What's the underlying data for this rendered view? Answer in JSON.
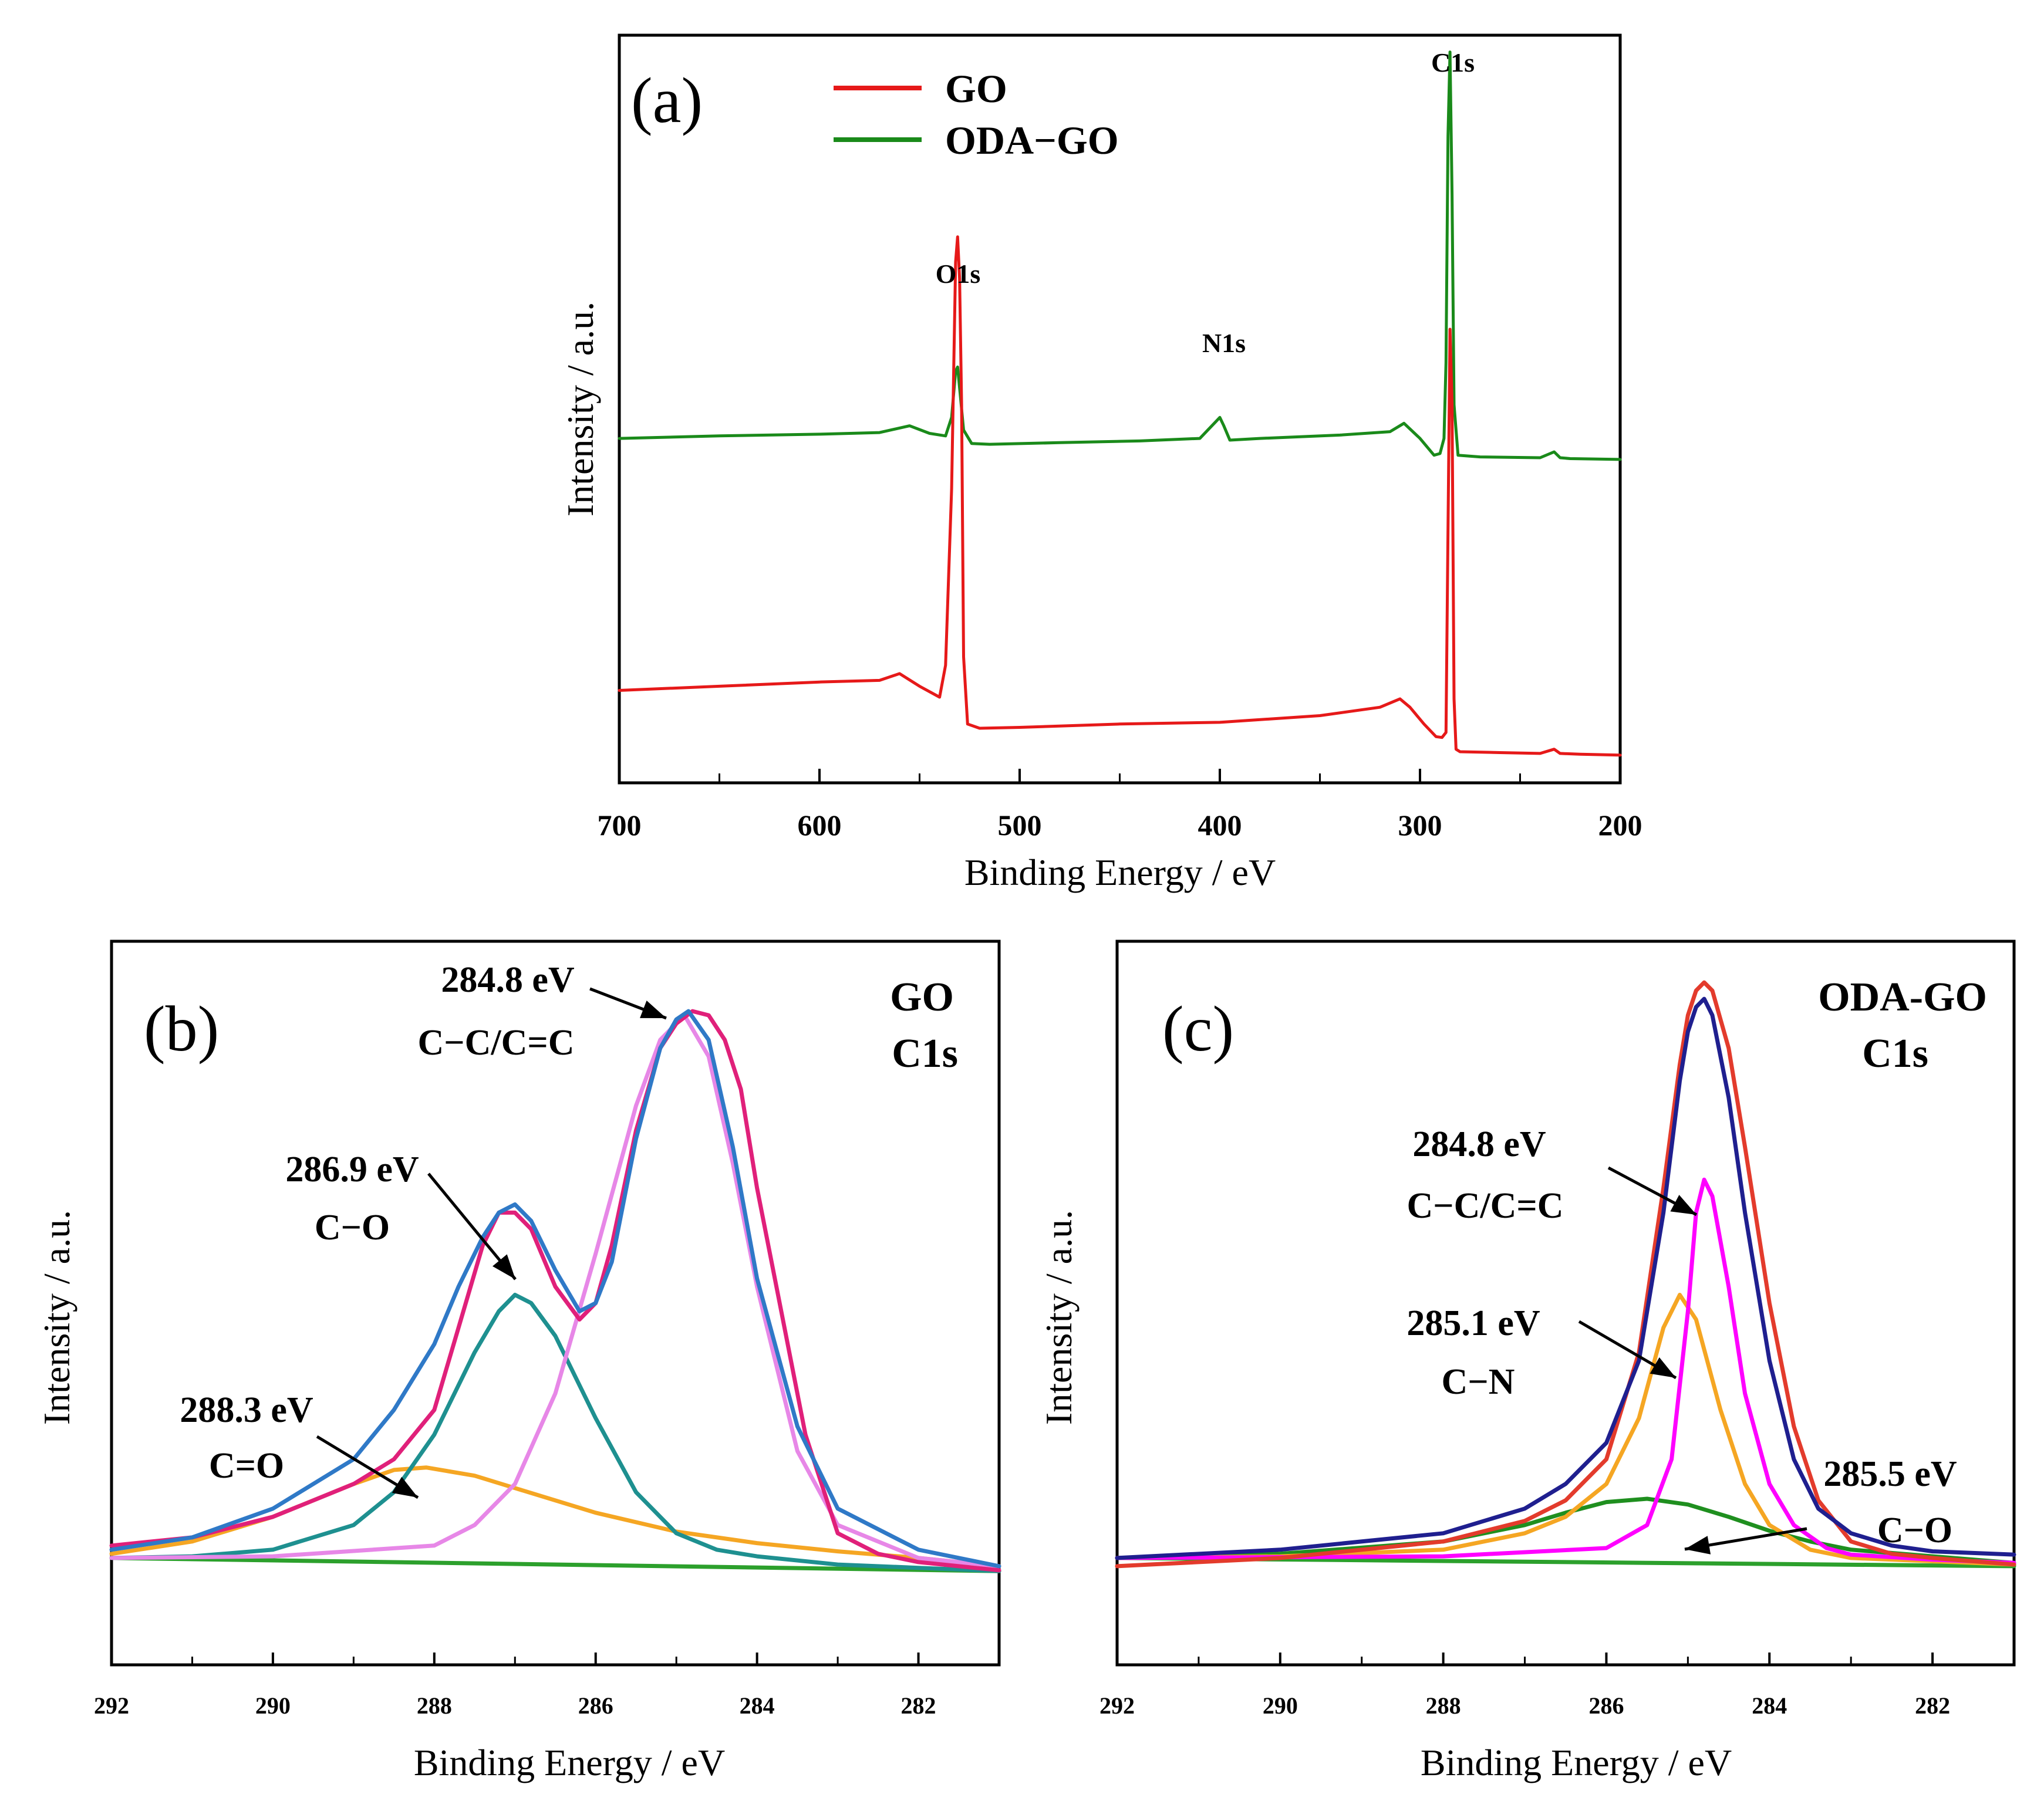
{
  "chart_data": [
    {
      "id": "a",
      "type": "line",
      "panel_label": "(a)",
      "xlabel": "Binding Energy / eV",
      "ylabel": "Intensity / a.u.",
      "xlim": [
        700,
        200
      ],
      "xticks": [
        700,
        600,
        500,
        400,
        300,
        200
      ],
      "legend": {
        "position": "top-center",
        "entries": [
          "GO",
          "ODA−GO"
        ]
      },
      "peak_labels": [
        {
          "text": "O1s",
          "x": 531
        },
        {
          "text": "N1s",
          "x": 400
        },
        {
          "text": "C1s",
          "x": 285
        }
      ],
      "series": [
        {
          "name": "ODA−GO",
          "color": "#1a8a1a",
          "x": [
            700,
            650,
            600,
            570,
            555,
            545,
            537,
            534,
            532,
            531,
            530,
            528,
            524,
            515,
            480,
            440,
            410,
            402,
            400,
            398,
            395,
            380,
            340,
            315,
            308,
            300,
            293,
            290,
            288,
            287,
            286,
            285,
            284,
            283,
            281,
            270,
            240,
            233,
            230,
            225,
            200
          ],
          "y": [
            1.0,
            1.3,
            1.5,
            1.7,
            2.5,
            1.6,
            1.3,
            3.5,
            9.0,
            9.5,
            7.0,
            2.0,
            0.4,
            0.3,
            0.5,
            0.7,
            1.0,
            3.0,
            3.5,
            2.5,
            0.8,
            1.0,
            1.4,
            1.8,
            2.8,
            1.0,
            -1.0,
            -0.8,
            1.0,
            10.0,
            37.0,
            47.0,
            30.0,
            5.0,
            -1.0,
            -1.2,
            -1.3,
            -0.6,
            -1.3,
            -1.4,
            -1.5
          ]
        },
        {
          "name": "GO",
          "color": "#e61919",
          "x": [
            700,
            650,
            600,
            570,
            560,
            550,
            540,
            537,
            534,
            532,
            531,
            530,
            529,
            528,
            526,
            520,
            500,
            450,
            400,
            350,
            320,
            310,
            305,
            298,
            292,
            289,
            287,
            286,
            285,
            284,
            283,
            282,
            280,
            260,
            240,
            233,
            230,
            220,
            200
          ],
          "y": [
            -29.0,
            -28.5,
            -28.0,
            -27.8,
            -27.0,
            -28.5,
            -29.8,
            -26.0,
            -5.0,
            22.0,
            25.0,
            20.0,
            5.0,
            -25.0,
            -33.0,
            -33.5,
            -33.4,
            -33.0,
            -32.8,
            -32.0,
            -31.0,
            -30.0,
            -31.0,
            -33.0,
            -34.5,
            -34.6,
            -34.0,
            -10.0,
            14.0,
            5.0,
            -30.0,
            -36.0,
            -36.3,
            -36.4,
            -36.5,
            -36.0,
            -36.5,
            -36.6,
            -36.7
          ]
        }
      ]
    },
    {
      "id": "b",
      "type": "line",
      "panel_label": "(b)",
      "xlabel": "Binding Energy / eV",
      "ylabel": "Intensity / a.u.",
      "xlim": [
        292,
        281
      ],
      "xticks": [
        292,
        290,
        288,
        286,
        284,
        282
      ],
      "sample": "GO",
      "region": "C1s",
      "annotations": [
        {
          "energy": "284.8 eV",
          "bond": "C−C/C=C"
        },
        {
          "energy": "286.9 eV",
          "bond": "C−O"
        },
        {
          "energy": "288.3 eV",
          "bond": "C=O"
        }
      ],
      "series": [
        {
          "name": "background",
          "color": "#2ca02c",
          "x": [
            292,
            281
          ],
          "y": [
            0.0,
            -0.016
          ]
        },
        {
          "name": "C=O fit",
          "color": "#f5a623",
          "x": [
            292,
            291,
            290,
            289,
            288.5,
            288.1,
            287.5,
            287,
            286,
            285,
            284,
            283,
            282,
            281
          ],
          "y": [
            0.005,
            0.02,
            0.05,
            0.09,
            0.107,
            0.11,
            0.1,
            0.085,
            0.055,
            0.032,
            0.018,
            0.008,
            0.0,
            -0.01
          ]
        },
        {
          "name": "C−O fit",
          "color": "#1e9090",
          "x": [
            292,
            291,
            290,
            289,
            288.5,
            288,
            287.5,
            287.2,
            287,
            286.8,
            286.5,
            286,
            285.5,
            285,
            284.5,
            284,
            283,
            282,
            281
          ],
          "y": [
            0.0,
            0.002,
            0.01,
            0.04,
            0.08,
            0.15,
            0.25,
            0.3,
            0.32,
            0.31,
            0.27,
            0.17,
            0.08,
            0.03,
            0.01,
            0.002,
            -0.008,
            -0.012,
            -0.016
          ]
        },
        {
          "name": "C−C/C=C fit",
          "color": "#e787e7",
          "x": [
            292,
            290,
            288,
            287.5,
            287,
            286.5,
            286,
            285.5,
            285.2,
            284.9,
            284.6,
            284.3,
            284,
            283.5,
            283,
            282,
            281
          ],
          "y": [
            0.0,
            0.002,
            0.015,
            0.04,
            0.09,
            0.2,
            0.37,
            0.55,
            0.63,
            0.66,
            0.61,
            0.48,
            0.33,
            0.13,
            0.04,
            0.0,
            -0.01
          ]
        },
        {
          "name": "raw data",
          "color": "#e0207a",
          "x": [
            292,
            291,
            290,
            289,
            288.5,
            288,
            287.7,
            287.4,
            287.2,
            287,
            286.8,
            286.5,
            286.2,
            286,
            285.8,
            285.5,
            285.2,
            285,
            284.8,
            284.6,
            284.4,
            284.2,
            284,
            283.7,
            283.4,
            283,
            282.5,
            282,
            281
          ],
          "y": [
            0.015,
            0.025,
            0.05,
            0.09,
            0.12,
            0.18,
            0.28,
            0.38,
            0.42,
            0.42,
            0.4,
            0.33,
            0.29,
            0.31,
            0.38,
            0.52,
            0.62,
            0.65,
            0.665,
            0.66,
            0.63,
            0.57,
            0.45,
            0.3,
            0.15,
            0.03,
            0.005,
            -0.005,
            -0.015
          ]
        },
        {
          "name": "sum fit",
          "color": "#2f79c7",
          "x": [
            292,
            291,
            290,
            289,
            288.5,
            288,
            287.7,
            287.4,
            287.2,
            287,
            286.8,
            286.5,
            286.2,
            286,
            285.8,
            285.5,
            285.2,
            285,
            284.85,
            284.6,
            284.3,
            284,
            283.5,
            283,
            282,
            281
          ],
          "y": [
            0.01,
            0.025,
            0.06,
            0.12,
            0.18,
            0.26,
            0.33,
            0.39,
            0.42,
            0.43,
            0.41,
            0.35,
            0.3,
            0.31,
            0.36,
            0.51,
            0.62,
            0.655,
            0.665,
            0.63,
            0.5,
            0.34,
            0.16,
            0.06,
            0.01,
            -0.01
          ]
        }
      ]
    },
    {
      "id": "c",
      "type": "line",
      "panel_label": "(c)",
      "xlabel": "Binding Energy / eV",
      "ylabel": "Intensity / a.u.",
      "xlim": [
        292,
        281
      ],
      "xticks": [
        292,
        290,
        288,
        286,
        284,
        282
      ],
      "sample": "ODA-GO",
      "region": "C1s",
      "annotations": [
        {
          "energy": "284.8 eV",
          "bond": "C−C/C=C"
        },
        {
          "energy": "285.1 eV",
          "bond": "C−N"
        },
        {
          "energy": "285.5 eV",
          "bond": "C−O"
        }
      ],
      "series": [
        {
          "name": "background",
          "color": "#2ca02c",
          "x": [
            292,
            281
          ],
          "y": [
            0.0,
            -0.01
          ]
        },
        {
          "name": "C−O fit",
          "color": "#1f8f1f",
          "x": [
            292,
            290,
            288,
            287,
            286.5,
            286,
            285.5,
            285,
            284.5,
            284,
            283.5,
            283,
            282,
            281
          ],
          "y": [
            0.0,
            0.005,
            0.02,
            0.04,
            0.055,
            0.068,
            0.072,
            0.065,
            0.05,
            0.033,
            0.02,
            0.01,
            0.002,
            -0.006
          ]
        },
        {
          "name": "C−N fit",
          "color": "#f5a623",
          "x": [
            292,
            290,
            288,
            287,
            286.5,
            286,
            285.6,
            285.3,
            285.1,
            284.9,
            284.6,
            284.3,
            284,
            283.5,
            283,
            282,
            281
          ],
          "y": [
            0.0,
            0.002,
            0.01,
            0.03,
            0.05,
            0.09,
            0.17,
            0.28,
            0.32,
            0.29,
            0.18,
            0.09,
            0.04,
            0.01,
            0.0,
            -0.004,
            -0.008
          ]
        },
        {
          "name": "C−C/C=C fit",
          "color": "#ff00ff",
          "x": [
            292,
            288,
            286,
            285.5,
            285.2,
            285,
            284.9,
            284.8,
            284.7,
            284.5,
            284.3,
            284,
            283.7,
            283.3,
            283,
            282,
            281
          ],
          "y": [
            0.0,
            0.002,
            0.012,
            0.04,
            0.12,
            0.3,
            0.42,
            0.46,
            0.44,
            0.33,
            0.2,
            0.09,
            0.04,
            0.012,
            0.004,
            -0.002,
            -0.006
          ]
        },
        {
          "name": "raw data",
          "color": "#e33b2c",
          "x": [
            292,
            290,
            288,
            287,
            286.5,
            286,
            285.6,
            285.3,
            285.1,
            285,
            284.9,
            284.8,
            284.7,
            284.5,
            284.3,
            284,
            283.7,
            283.4,
            283,
            282.5,
            282,
            281
          ],
          "y": [
            -0.01,
            0.0,
            0.02,
            0.045,
            0.07,
            0.12,
            0.25,
            0.45,
            0.6,
            0.66,
            0.69,
            0.7,
            0.69,
            0.62,
            0.5,
            0.31,
            0.16,
            0.07,
            0.02,
            0.005,
            0.0,
            -0.008
          ]
        },
        {
          "name": "sum fit",
          "color": "#1f1f8f",
          "x": [
            292,
            290,
            288,
            287,
            286.5,
            286,
            285.6,
            285.3,
            285.1,
            285,
            284.9,
            284.8,
            284.7,
            284.5,
            284.3,
            284,
            283.7,
            283.4,
            283,
            282.5,
            282,
            281
          ],
          "y": [
            0.0,
            0.01,
            0.03,
            0.06,
            0.09,
            0.14,
            0.24,
            0.42,
            0.58,
            0.64,
            0.67,
            0.68,
            0.66,
            0.56,
            0.42,
            0.24,
            0.12,
            0.06,
            0.03,
            0.015,
            0.008,
            0.004
          ]
        }
      ]
    }
  ]
}
